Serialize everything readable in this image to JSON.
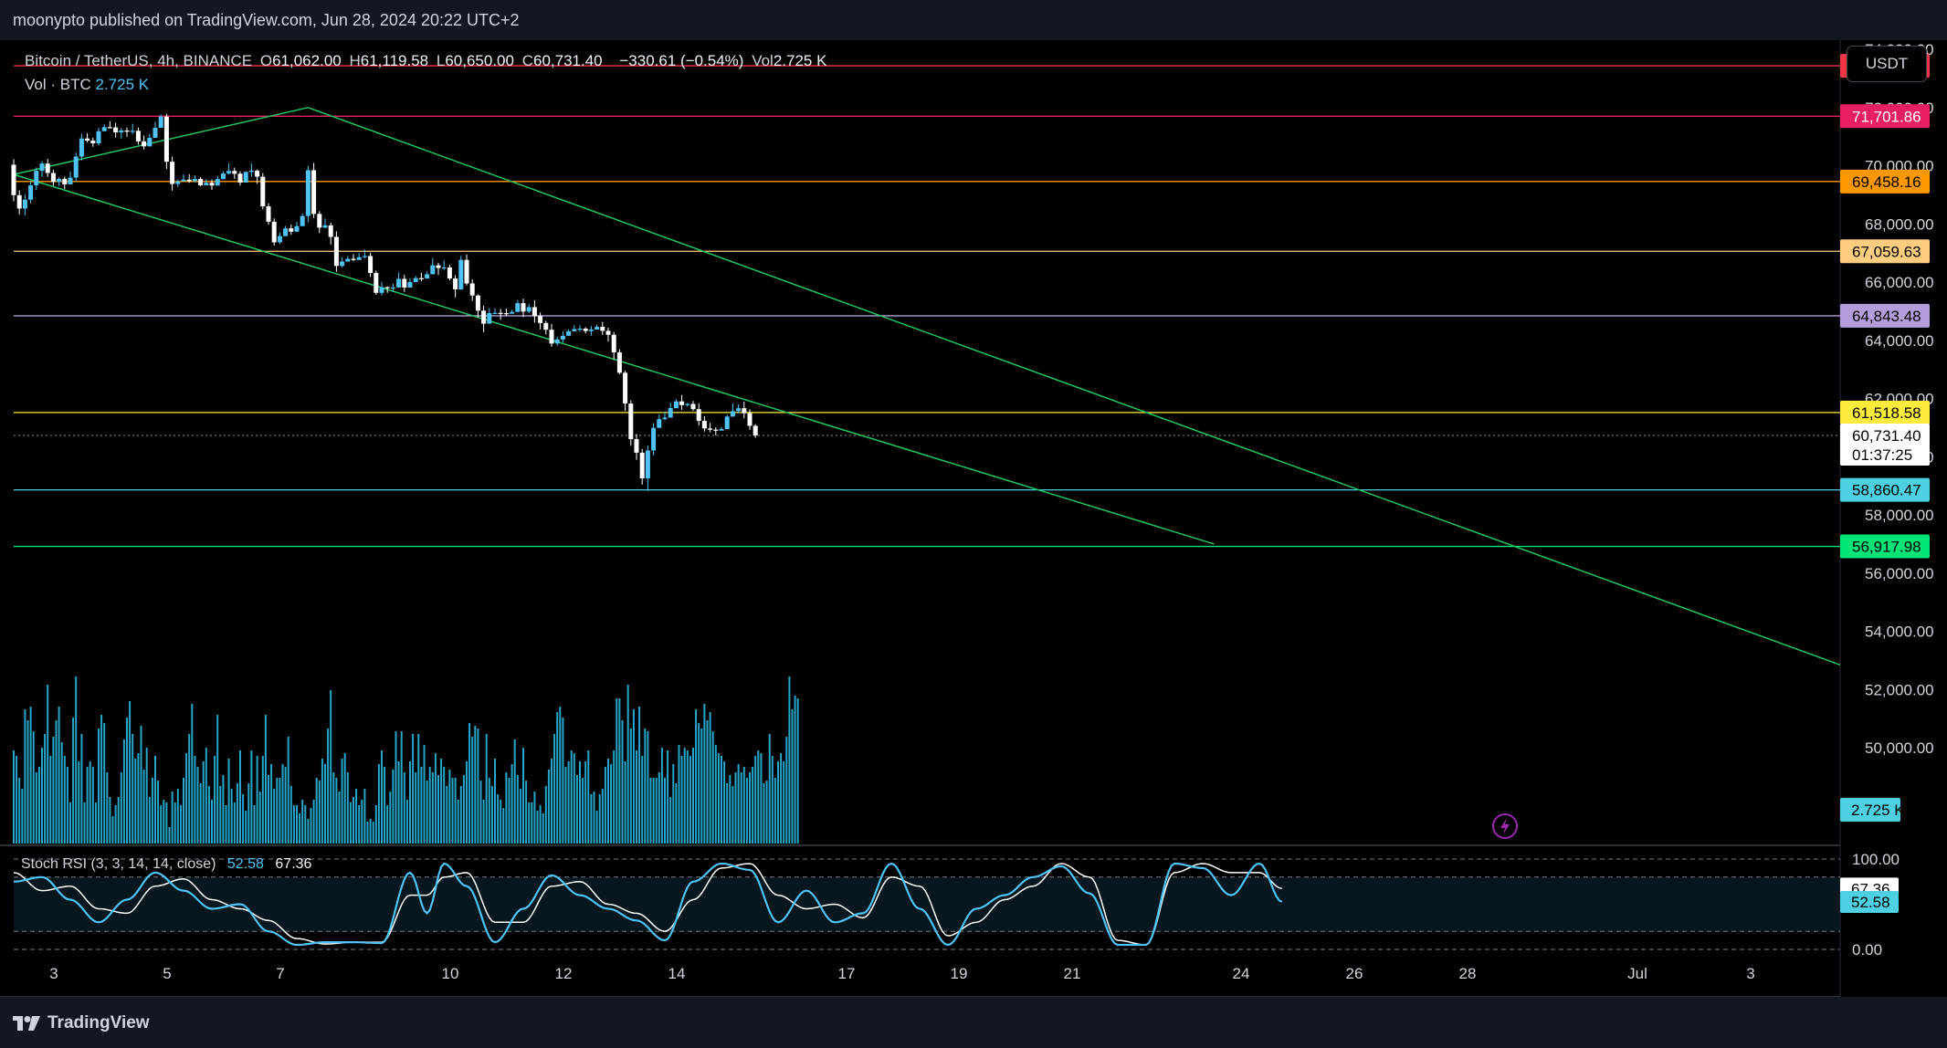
{
  "header": {
    "published": "moonypto published on TradingView.com, Jun 28, 2024 20:22 UTC+2"
  },
  "legend": {
    "symbol": "Bitcoin / TetherUS, 4h, BINANCE",
    "o_label": "O",
    "o": "61,062.00",
    "h_label": "H",
    "h": "61,119.58",
    "l_label": "L",
    "l": "60,650.00",
    "c_label": "C",
    "c": "60,731.40",
    "change": "−330.61 (−0.54%)",
    "vol_label": "Vol",
    "vol": "2.725 K",
    "vol_row_label": "Vol · BTC",
    "vol_row_value": "2.725 K"
  },
  "currency_button": "USDT",
  "stoch": {
    "label": "Stoch RSI (3, 3, 14, 14, close)",
    "k": "52.58",
    "d": "67.36"
  },
  "footer": {
    "brand": "TradingView"
  },
  "colors": {
    "bull": "#4fc3f7",
    "bear": "#ffffff",
    "channel": "#22c55e",
    "volume": "#26a6c9"
  },
  "chart_data": {
    "type": "candlestick",
    "price_axis": {
      "ticks": [
        56000,
        58000,
        60000,
        62000,
        64000,
        66000,
        68000,
        70000,
        72000,
        74000
      ],
      "tick_labels": [
        "56,000.00",
        "58,000.00",
        "60,000.00",
        "62,000.00",
        "64,000.00",
        "66,000.00",
        "68,000.00",
        "70,000.00",
        "72,000.00",
        "74,000.00"
      ],
      "hidden_tick_labels": [
        "54,000.00",
        "52,000.00",
        "50,000.00"
      ]
    },
    "time_axis": {
      "ticks": [
        "3",
        "5",
        "7",
        "10",
        "12",
        "14",
        "17",
        "19",
        "21",
        "24",
        "26",
        "28",
        "Jul",
        "3"
      ]
    },
    "horizontal_levels": [
      {
        "value": 73434.77,
        "label": "73,434.77",
        "color": "#f23645",
        "text_color": "#ffffff"
      },
      {
        "value": 71701.86,
        "label": "71,701.86",
        "color": "#e91e63",
        "text_color": "#ffffff"
      },
      {
        "value": 69458.16,
        "label": "69,458.16",
        "color": "#ff9800",
        "text_color": "#000000"
      },
      {
        "value": 67059.63,
        "label": "67,059.63",
        "color": "#ffcc80",
        "text_color": "#000000"
      },
      {
        "value": 64843.48,
        "label": "64,843.48",
        "color": "#b39ddb",
        "text_color": "#000000"
      },
      {
        "value": 61518.58,
        "label": "61,518.58",
        "color": "#ffeb3b",
        "text_color": "#000000"
      },
      {
        "value": 58860.47,
        "label": "58,860.47",
        "color": "#4dd0e1",
        "text_color": "#000000"
      },
      {
        "value": 56917.98,
        "label": "56,917.98",
        "color": "#00e676",
        "text_color": "#000000"
      }
    ],
    "current_price": {
      "value": 60731.4,
      "label": "60,731.40",
      "countdown": "01:37:25"
    },
    "volume_label": "2.725 K",
    "channel": {
      "upper": [
        {
          "t": 52,
          "v": 72000
        },
        {
          "t": 230,
          "v": 59400
        }
      ],
      "lower": [
        {
          "t": 0,
          "v": 69700
        },
        {
          "t": 212,
          "v": 57000
        }
      ]
    },
    "stoch_axis": {
      "ticks": [
        0,
        20,
        80,
        100
      ],
      "tick_labels": [
        "0.00",
        "100.00"
      ]
    },
    "stoch_anchors": [
      [
        0,
        75,
        85
      ],
      [
        5,
        80,
        65
      ],
      [
        10,
        55,
        70
      ],
      [
        15,
        30,
        45
      ],
      [
        20,
        55,
        40
      ],
      [
        25,
        85,
        70
      ],
      [
        30,
        65,
        78
      ],
      [
        35,
        45,
        55
      ],
      [
        40,
        50,
        45
      ],
      [
        45,
        20,
        32
      ],
      [
        50,
        5,
        12
      ],
      [
        55,
        8,
        6
      ],
      [
        60,
        8,
        8
      ],
      [
        65,
        7,
        8
      ],
      [
        70,
        85,
        60
      ],
      [
        73,
        40,
        60
      ],
      [
        76,
        95,
        80
      ],
      [
        80,
        70,
        85
      ],
      [
        85,
        8,
        30
      ],
      [
        90,
        45,
        30
      ],
      [
        95,
        82,
        70
      ],
      [
        100,
        60,
        75
      ],
      [
        105,
        45,
        50
      ],
      [
        110,
        32,
        40
      ],
      [
        115,
        10,
        20
      ],
      [
        120,
        75,
        55
      ],
      [
        125,
        95,
        90
      ],
      [
        130,
        88,
        95
      ],
      [
        135,
        30,
        60
      ],
      [
        140,
        65,
        45
      ],
      [
        145,
        30,
        50
      ],
      [
        150,
        40,
        35
      ],
      [
        155,
        95,
        80
      ],
      [
        160,
        45,
        70
      ],
      [
        165,
        5,
        15
      ],
      [
        170,
        45,
        30
      ],
      [
        175,
        60,
        55
      ],
      [
        180,
        80,
        70
      ],
      [
        185,
        92,
        95
      ],
      [
        190,
        62,
        80
      ],
      [
        195,
        5,
        10
      ],
      [
        200,
        5,
        5
      ],
      [
        205,
        95,
        85
      ],
      [
        210,
        90,
        95
      ],
      [
        215,
        60,
        85
      ],
      [
        220,
        95,
        85
      ],
      [
        224,
        52.58,
        67.36
      ]
    ],
    "candles": [
      [
        70036,
        68988,
        70229,
        68779
      ],
      [
        68988,
        68529,
        69156,
        68320
      ],
      [
        68529,
        68832,
        69010,
        68291
      ],
      [
        68832,
        69325,
        69474,
        68703
      ],
      [
        69325,
        69825,
        69943,
        69163
      ],
      [
        69825,
        70075,
        70159,
        69613
      ],
      [
        70075,
        69751,
        70240,
        69614
      ],
      [
        69751,
        69442,
        69864,
        69310
      ],
      [
        69442,
        69550,
        69606,
        69306
      ],
      [
        69550,
        69360,
        69629,
        69195
      ],
      [
        69360,
        69593,
        69792,
        69397
      ],
      [
        69593,
        70315,
        70449,
        69452
      ],
      [
        70315,
        70937,
        71102,
        70183
      ],
      [
        70937,
        70861,
        71122,
        70804
      ],
      [
        70861,
        70771,
        70962,
        70653
      ],
      [
        70771,
        71185,
        71309,
        70703
      ],
      [
        71185,
        71326,
        71425,
        71239
      ],
      [
        71326,
        71317,
        71529,
        71284
      ],
      [
        71317,
        71147,
        71479,
        70969
      ],
      [
        71147,
        71210,
        71297,
        70930
      ],
      [
        71210,
        71169,
        71312,
        70993
      ],
      [
        71169,
        71199,
        71440,
        71082
      ],
      [
        71199,
        70837,
        71317,
        70725
      ],
      [
        70837,
        70665,
        71039,
        70558
      ],
      [
        70665,
        70959,
        71090,
        70865
      ],
      [
        70959,
        71303,
        71506,
        71227
      ],
      [
        71303,
        71689,
        71765,
        71448
      ],
      [
        71689,
        70138,
        71780,
        69891
      ],
      [
        70138,
        69373,
        70315,
        69147
      ],
      [
        69373,
        69464,
        69528,
        69270
      ],
      [
        69464,
        69523,
        69712,
        69490
      ],
      [
        69523,
        69470,
        69712,
        69415
      ],
      [
        69470,
        69545,
        69672,
        69422
      ],
      [
        69545,
        69328,
        69609,
        69293
      ],
      [
        69328,
        69415,
        69523,
        69333
      ],
      [
        69415,
        69320,
        69527,
        69168
      ],
      [
        69320,
        69544,
        69650,
        69444
      ],
      [
        69544,
        69733,
        69811,
        69528
      ],
      [
        69733,
        69821,
        70081,
        69696
      ],
      [
        69821,
        69725,
        69935,
        69550
      ],
      [
        69725,
        69420,
        69810,
        69322
      ],
      [
        69420,
        69786,
        69806,
        69540
      ],
      [
        69786,
        69832,
        70078,
        69616
      ],
      [
        69832,
        69623,
        69872,
        69385
      ],
      [
        69623,
        68604,
        69751,
        68500
      ],
      [
        68604,
        68077,
        68708,
        67970
      ],
      [
        68077,
        67367,
        68189,
        67257
      ],
      [
        67367,
        67580,
        67703,
        67311
      ],
      [
        67580,
        67847,
        67934,
        67597
      ],
      [
        67847,
        67735,
        67981,
        67634
      ],
      [
        67735,
        67924,
        68073,
        67720
      ],
      [
        67924,
        68273,
        68357,
        68117
      ],
      [
        68273,
        69847,
        69995,
        68060
      ],
      [
        69847,
        68345,
        70098,
        68204
      ],
      [
        68345,
        67873,
        68441,
        67683
      ],
      [
        67873,
        67953,
        68186,
        67848
      ],
      [
        67953,
        67555,
        68041,
        67292
      ],
      [
        67555,
        66556,
        67747,
        66350
      ],
      [
        66556,
        66709,
        66852,
        66508
      ],
      [
        66709,
        66800,
        66899,
        66686
      ],
      [
        66800,
        66760,
        66962,
        66714
      ],
      [
        66760,
        66858,
        67005,
        66787
      ],
      [
        66858,
        66896,
        67116,
        66821
      ],
      [
        66896,
        66317,
        67013,
        66178
      ],
      [
        66317,
        65632,
        66400,
        65565
      ],
      [
        65632,
        65827,
        66011,
        65542
      ],
      [
        65827,
        65807,
        65853,
        65629
      ],
      [
        65807,
        65816,
        65945,
        65666
      ],
      [
        65816,
        66113,
        66327,
        66024
      ],
      [
        66113,
        65814,
        66259,
        65662
      ],
      [
        65814,
        66002,
        66128,
        65937
      ],
      [
        66002,
        66137,
        66212,
        66080
      ],
      [
        66137,
        66124,
        66328,
        66025
      ],
      [
        66124,
        66271,
        66360,
        66149
      ],
      [
        66271,
        66579,
        66828,
        66355
      ],
      [
        66579,
        66486,
        66666,
        66247
      ],
      [
        66486,
        66506,
        66746,
        66420
      ],
      [
        66506,
        66124,
        66602,
        66058
      ],
      [
        66124,
        65752,
        66236,
        65475
      ],
      [
        65752,
        66765,
        66902,
        65733
      ],
      [
        66765,
        65954,
        66952,
        65887
      ],
      [
        65954,
        65542,
        66096,
        65358
      ],
      [
        65542,
        65020,
        65578,
        64782
      ],
      [
        65020,
        64571,
        65188,
        64282
      ],
      [
        64571,
        64935,
        65110,
        64793
      ],
      [
        64935,
        64944,
        65099,
        64902
      ],
      [
        64944,
        64934,
        65083,
        64708
      ],
      [
        64934,
        64913,
        65095,
        64834
      ],
      [
        64913,
        64974,
        65049,
        64940
      ],
      [
        64974,
        65276,
        65377,
        65167
      ],
      [
        65276,
        64987,
        65433,
        64797
      ],
      [
        64987,
        65141,
        65248,
        64934
      ],
      [
        65141,
        64829,
        65382,
        64608
      ],
      [
        64829,
        64595,
        64959,
        64376
      ],
      [
        64595,
        64364,
        64670,
        64202
      ],
      [
        64364,
        63890,
        64566,
        63780
      ],
      [
        63890,
        64031,
        64125,
        63812
      ],
      [
        64031,
        64156,
        64312,
        63921
      ],
      [
        64156,
        64310,
        64380,
        64180
      ],
      [
        64310,
        64385,
        64518,
        64303
      ],
      [
        64385,
        64401,
        64514,
        64292
      ],
      [
        64401,
        64320,
        64452,
        64238
      ],
      [
        64320,
        64371,
        64492,
        64160
      ],
      [
        64371,
        64462,
        64542,
        64405
      ],
      [
        64462,
        64327,
        64637,
        64185
      ],
      [
        64327,
        64190,
        64431,
        63963
      ],
      [
        64190,
        63585,
        64285,
        63335
      ],
      [
        63585,
        62885,
        63696,
        62826
      ],
      [
        62885,
        61826,
        62958,
        61574
      ],
      [
        61826,
        60606,
        61940,
        60378
      ],
      [
        60606,
        60139,
        60778,
        59890
      ],
      [
        60139,
        59256,
        60269,
        59040
      ],
      [
        59256,
        60212,
        60381,
        58822
      ],
      [
        60212,
        60990,
        61152,
        60040
      ],
      [
        60990,
        61292,
        61457,
        61088
      ],
      [
        61292,
        61345,
        61552,
        61244
      ],
      [
        61345,
        61672,
        61851,
        61521
      ],
      [
        61672,
        61902,
        61980,
        61811
      ],
      [
        61902,
        61774,
        62125,
        61610
      ],
      [
        61774,
        61813,
        61852,
        61722
      ],
      [
        61813,
        61634,
        61916,
        61572
      ],
      [
        61634,
        61232,
        61833,
        61070
      ],
      [
        61232,
        60973,
        61396,
        60867
      ],
      [
        60973,
        60931,
        61163,
        60841
      ],
      [
        60931,
        60897,
        61013,
        60729
      ],
      [
        60897,
        60950,
        61022,
        60902
      ],
      [
        60950,
        61380,
        61444,
        61227
      ],
      [
        61380,
        61567,
        61832,
        61379
      ],
      [
        61567,
        61667,
        61801,
        61492
      ],
      [
        61667,
        61495,
        61893,
        61318
      ],
      [
        61495,
        61062,
        61634,
        60926
      ],
      [
        61062,
        60731,
        61120,
        60650
      ]
    ],
    "volumes": [
      34,
      32,
      24,
      20,
      49,
      45,
      50,
      41,
      26,
      28,
      35,
      40,
      58,
      32,
      39,
      45,
      50,
      37,
      32,
      28,
      15,
      46,
      61,
      30,
      40,
      15,
      28,
      30,
      28,
      15,
      42,
      47,
      44,
      26,
      17,
      10,
      14,
      17,
      26,
      38,
      46,
      52,
      40,
      31,
      33,
      43,
      27,
      35,
      17,
      24,
      32,
      23,
      14,
      16,
      15,
      6,
      19,
      15,
      20,
      14,
      24,
      33,
      40,
      51,
      32,
      28,
      22,
      30,
      35,
      21,
      16,
      32,
      47,
      21,
      25,
      14,
      31,
      20,
      15,
      22,
      34,
      18,
      12,
      22,
      34,
      14,
      32,
      19,
      32,
      47,
      25,
      29,
      20,
      24,
      24,
      29,
      28,
      39,
      21,
      14,
      14,
      11,
      16,
      14,
      9,
      13,
      16,
      24,
      23,
      31,
      29,
      42,
      56,
      26,
      24,
      19,
      31,
      33,
      26,
      15,
      17,
      20,
      14,
      16,
      20,
      8,
      9,
      8,
      14,
      29,
      34,
      28,
      14,
      19,
      27,
      41,
      30,
      41,
      26,
      16,
      30,
      40,
      26,
      40,
      28,
      36,
      23,
      28,
      26,
      33,
      25,
      31,
      28,
      21,
      27,
      24,
      24,
      16,
      21,
      25,
      30,
      44,
      39,
      43,
      42,
      23,
      16,
      40,
      24,
      21,
      31,
      18,
      16,
      13,
      26,
      24,
      29,
      38,
      25,
      20,
      35,
      23,
      15,
      15,
      19,
      12,
      14,
      11,
      21,
      27,
      31,
      40,
      48,
      50,
      46,
      28,
      30,
      34,
      33,
      25,
      30,
      24,
      30,
      34,
      18,
      19,
      12,
      18,
      20,
      28,
      31,
      29,
      34,
      53,
      53,
      45,
      30,
      58,
      42,
      49,
      34,
      50,
      32,
      42,
      41,
      24,
      24,
      24,
      26,
      35,
      24,
      34,
      17,
      29,
      22,
      36,
      32,
      35,
      34,
      32,
      35,
      49,
      44,
      42,
      51,
      45,
      48,
      41,
      36,
      33,
      32,
      30,
      22,
      25,
      21,
      26,
      29,
      26,
      28,
      24,
      26,
      28,
      32,
      34,
      33,
      22,
      23,
      40,
      32,
      24,
      30,
      33,
      30,
      39,
      61,
      49,
      54,
      53
    ]
  }
}
